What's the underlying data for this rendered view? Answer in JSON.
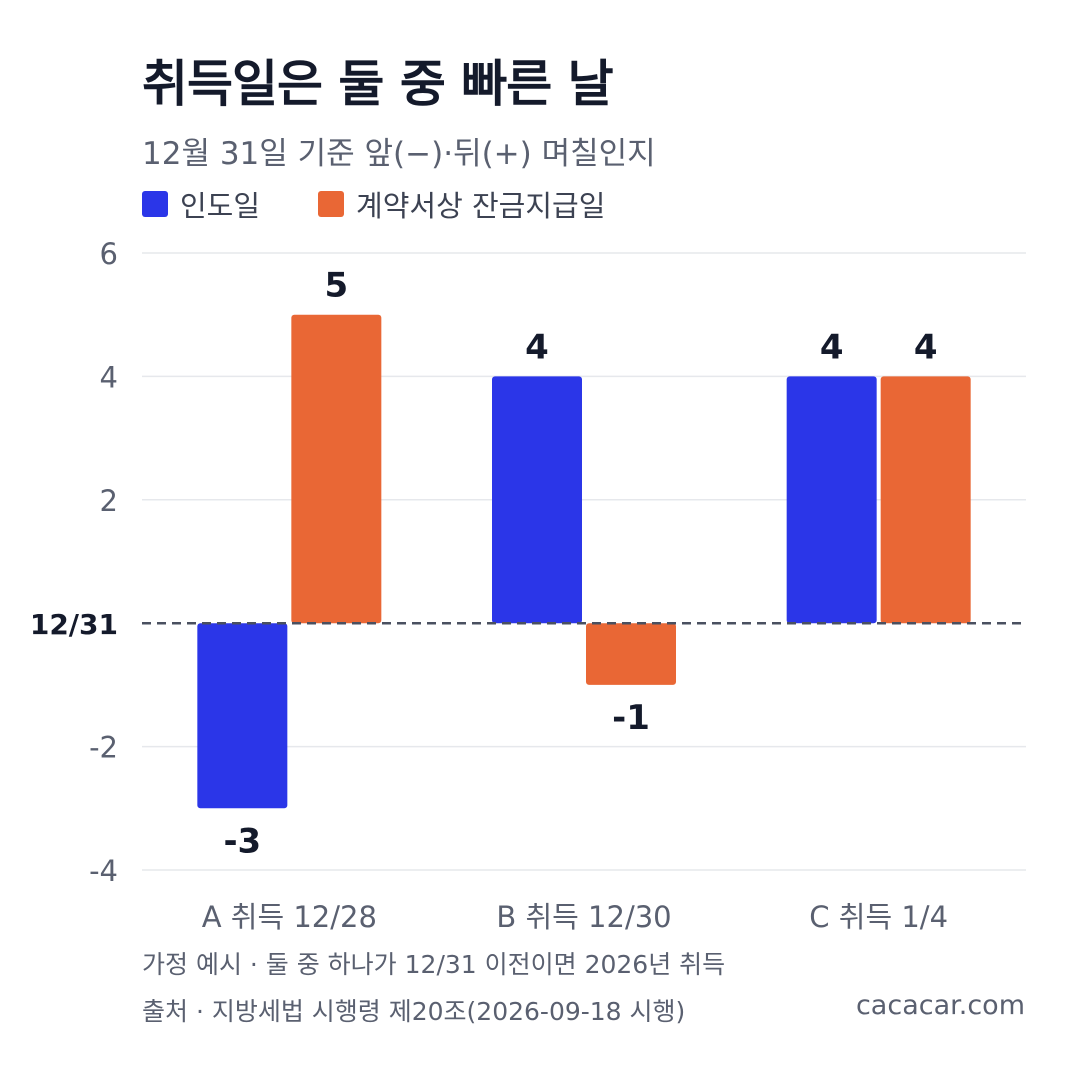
{
  "title": "취득일은 둘 중 빠른 날",
  "subtitle": "12월 31일 기준 앞(−)·뒤(+) 며칠인지",
  "footnote": "가정 예시 · 둘 중 하나가 12/31 이전이면 2026년 취득",
  "source": "출처 · 지방세법 시행령 제20조(2026-09-18 시행)",
  "site": "cacacar.com",
  "colors": {
    "series0": "#2b36e8",
    "series1": "#e96735",
    "grid": "#e6e8ec",
    "zero_line": "#4a5060",
    "text_dark": "#141a2b",
    "text_muted": "#5a6070"
  },
  "chart_data": {
    "type": "bar",
    "categories": [
      "A 취득 12/28",
      "B 취득 12/30",
      "C 취득 1/4"
    ],
    "series": [
      {
        "name": "인도일",
        "values": [
          -3,
          4,
          4
        ]
      },
      {
        "name": "계약서상 잔금지급일",
        "values": [
          5,
          -1,
          4
        ]
      }
    ],
    "ylim": [
      -4,
      6
    ],
    "yticks": [
      -4,
      -2,
      0,
      2,
      4,
      6
    ],
    "ytick_labels": [
      "-4",
      "-2",
      "12/31",
      "2",
      "4",
      "6"
    ],
    "grid": true,
    "legend": "top-left",
    "data_labels": true
  }
}
